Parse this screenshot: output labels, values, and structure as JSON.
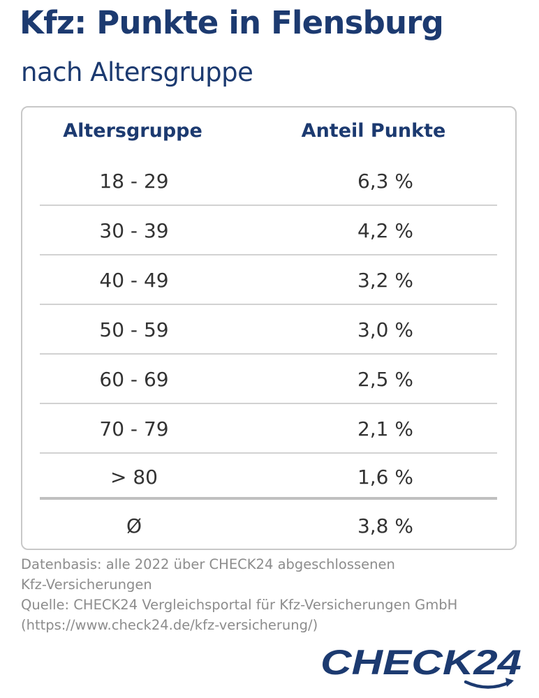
{
  "header": {
    "title": "Kfz: Punkte in Flensburg",
    "subtitle": "nach Altersgruppe"
  },
  "table": {
    "columns": [
      "Altersgruppe",
      "Anteil Punkte"
    ],
    "rows": [
      {
        "age": "18 - 29",
        "share": "6,3 %"
      },
      {
        "age": "30 - 39",
        "share": "4,2 %"
      },
      {
        "age": "40 - 49",
        "share": "3,2 %"
      },
      {
        "age": "50 - 59",
        "share": "3,0 %"
      },
      {
        "age": "60 - 69",
        "share": "2,5 %"
      },
      {
        "age": "70 - 79",
        "share": "2,1 %"
      },
      {
        "age": "> 80",
        "share": "1,6 %"
      }
    ],
    "average": {
      "age": "Ø",
      "share": "3,8 %"
    }
  },
  "footnote": {
    "lines": [
      "Datenbasis: alle 2022 über CHECK24 abgeschlossenen",
      "Kfz-Versicherungen",
      "Quelle: CHECK24 Vergleichsportal für Kfz-Versicherungen GmbH",
      "(https://www.check24.de/kfz-versicherung/)"
    ]
  },
  "brand": {
    "logo_text": "CHECK24",
    "color": "#1c3a70"
  },
  "chart_data": {
    "type": "table",
    "title": "Kfz: Punkte in Flensburg",
    "subtitle": "nach Altersgruppe",
    "columns": [
      "Altersgruppe",
      "Anteil Punkte"
    ],
    "categories": [
      "18 - 29",
      "30 - 39",
      "40 - 49",
      "50 - 59",
      "60 - 69",
      "70 - 79",
      "> 80",
      "Ø"
    ],
    "values": [
      6.3,
      4.2,
      3.2,
      3.0,
      2.5,
      2.1,
      1.6,
      3.8
    ],
    "unit": "%"
  }
}
